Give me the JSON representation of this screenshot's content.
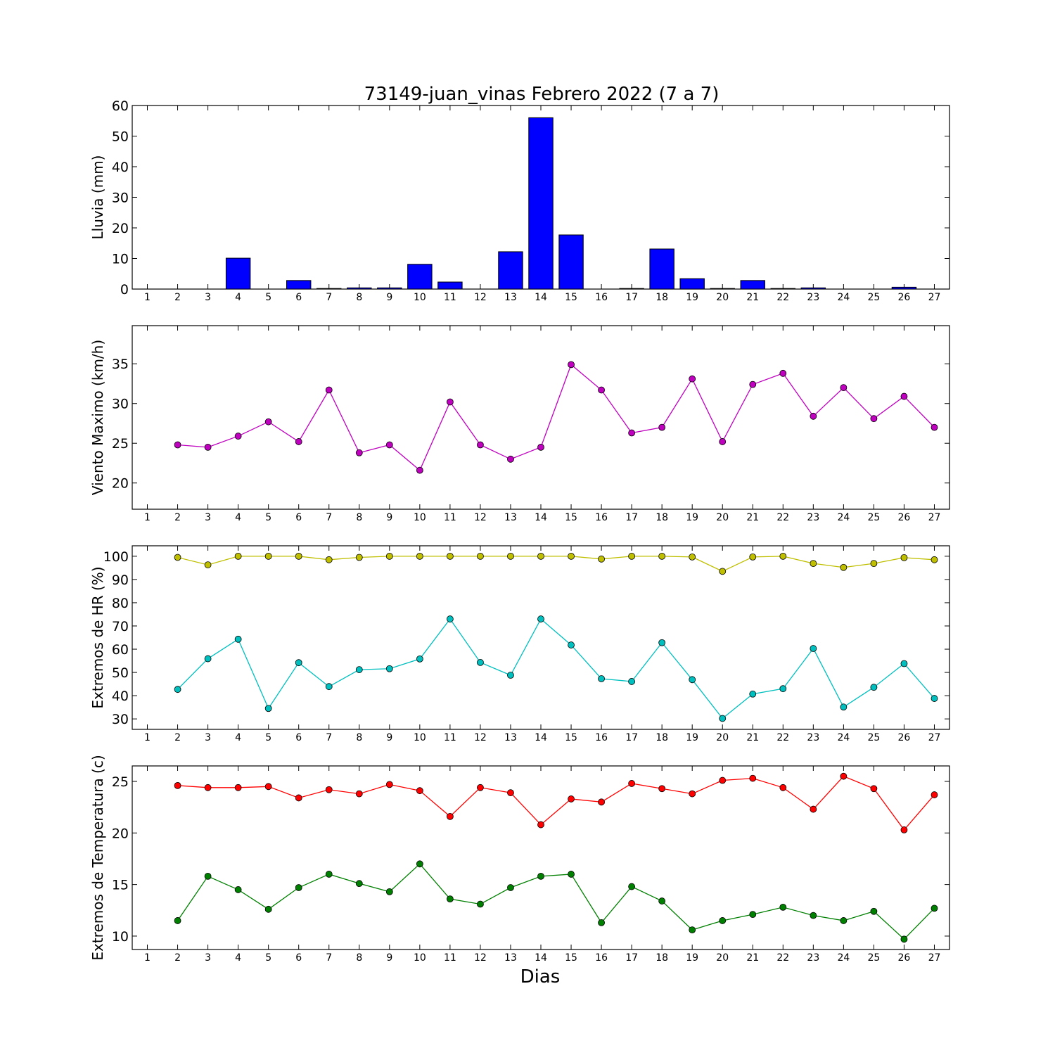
{
  "figure": {
    "title": "73149-juan_vinas Febrero 2022  (7 a 7)",
    "xlabel": "Dias"
  },
  "chart_data": [
    {
      "type": "bar",
      "id": "rain",
      "title": "73149-juan_vinas Febrero 2022  (7 a 7)",
      "xlabel": "",
      "ylabel": "Lluvia (mm)",
      "x": [
        1,
        2,
        3,
        4,
        5,
        6,
        7,
        8,
        9,
        10,
        11,
        12,
        13,
        14,
        15,
        16,
        17,
        18,
        19,
        20,
        21,
        22,
        23,
        24,
        25,
        26,
        27
      ],
      "xlim": [
        0.5,
        27.5
      ],
      "ylim": [
        0,
        60
      ],
      "yticks": [
        0,
        10,
        20,
        30,
        40,
        50,
        60
      ],
      "series": [
        {
          "color": "#0000ff",
          "values": [
            0,
            0,
            0,
            10.1,
            0,
            2.8,
            0.2,
            0.4,
            0.4,
            8.1,
            2.3,
            0,
            12.2,
            56.0,
            17.7,
            0,
            0.2,
            13.1,
            3.4,
            0.2,
            2.8,
            0.2,
            0.4,
            0,
            0,
            0.6,
            0
          ]
        }
      ]
    },
    {
      "type": "line",
      "id": "wind",
      "xlabel": "",
      "ylabel": "Viento Maximo (km/h)",
      "x": [
        1,
        2,
        3,
        4,
        5,
        6,
        7,
        8,
        9,
        10,
        11,
        12,
        13,
        14,
        15,
        16,
        17,
        18,
        19,
        20,
        21,
        22,
        23,
        24,
        25,
        26,
        27
      ],
      "xlim": [
        0.5,
        27.5
      ],
      "ylim": [
        16.7,
        39.8
      ],
      "yticks": [
        20,
        25,
        30,
        35
      ],
      "series": [
        {
          "color": "#bf00bf",
          "x": [
            2,
            3,
            4,
            5,
            6,
            7,
            8,
            9,
            10,
            11,
            12,
            13,
            14,
            15,
            16,
            17,
            18,
            19,
            20,
            21,
            22,
            23,
            24,
            25,
            26,
            27
          ],
          "values": [
            24.8,
            24.5,
            25.9,
            27.7,
            25.2,
            31.7,
            23.8,
            24.8,
            21.6,
            30.2,
            24.8,
            23.0,
            24.5,
            34.9,
            31.7,
            26.3,
            27.0,
            33.1,
            25.2,
            32.4,
            33.8,
            28.4,
            32.0,
            28.1,
            30.9,
            27.0
          ]
        }
      ]
    },
    {
      "type": "line",
      "id": "humidity",
      "xlabel": "",
      "ylabel": "Extremos de HR (%)",
      "x": [
        1,
        2,
        3,
        4,
        5,
        6,
        7,
        8,
        9,
        10,
        11,
        12,
        13,
        14,
        15,
        16,
        17,
        18,
        19,
        20,
        21,
        22,
        23,
        24,
        25,
        26,
        27
      ],
      "xlim": [
        0.5,
        27.5
      ],
      "ylim": [
        25.5,
        104.5
      ],
      "yticks": [
        30,
        40,
        50,
        60,
        70,
        80,
        90,
        100
      ],
      "series": [
        {
          "color": "#bfbf00",
          "x": [
            2,
            3,
            4,
            5,
            6,
            7,
            8,
            9,
            10,
            11,
            12,
            13,
            14,
            15,
            16,
            17,
            18,
            19,
            20,
            21,
            22,
            23,
            24,
            25,
            26,
            27
          ],
          "values": [
            99.5,
            96.3,
            100,
            100,
            100,
            98.5,
            99.5,
            100,
            100,
            100,
            100,
            100,
            100,
            100,
            98.8,
            100,
            100,
            99.7,
            93.5,
            99.7,
            100,
            96.9,
            95.2,
            96.9,
            99.4,
            98.5
          ]
        },
        {
          "color": "#00bfbf",
          "x": [
            2,
            3,
            4,
            5,
            6,
            7,
            8,
            9,
            10,
            11,
            12,
            13,
            14,
            15,
            16,
            17,
            18,
            19,
            20,
            21,
            22,
            23,
            24,
            25,
            26,
            27
          ],
          "values": [
            42.7,
            55.9,
            64.3,
            34.5,
            54.2,
            43.9,
            51.2,
            51.6,
            55.8,
            73.0,
            54.3,
            48.8,
            73.0,
            61.8,
            47.3,
            46.1,
            62.8,
            46.9,
            30.2,
            40.7,
            43.0,
            60.3,
            35.1,
            43.6,
            53.8,
            38.8
          ]
        }
      ]
    },
    {
      "type": "line",
      "id": "temperature",
      "xlabel": "Dias",
      "ylabel": "Extremos de Temperatura (c)",
      "x": [
        1,
        2,
        3,
        4,
        5,
        6,
        7,
        8,
        9,
        10,
        11,
        12,
        13,
        14,
        15,
        16,
        17,
        18,
        19,
        20,
        21,
        22,
        23,
        24,
        25,
        26,
        27
      ],
      "xlim": [
        0.5,
        27.5
      ],
      "ylim": [
        8.7,
        26.5
      ],
      "yticks": [
        10,
        15,
        20,
        25
      ],
      "series": [
        {
          "color": "#ff0000",
          "x": [
            2,
            3,
            4,
            5,
            6,
            7,
            8,
            9,
            10,
            11,
            12,
            13,
            14,
            15,
            16,
            17,
            18,
            19,
            20,
            21,
            22,
            23,
            24,
            25,
            26,
            27
          ],
          "values": [
            24.6,
            24.4,
            24.4,
            24.5,
            23.4,
            24.2,
            23.8,
            24.7,
            24.1,
            21.6,
            24.4,
            23.9,
            20.8,
            23.3,
            23.0,
            24.8,
            24.3,
            23.8,
            25.1,
            25.3,
            24.4,
            22.3,
            25.5,
            24.3,
            20.3,
            23.7
          ]
        },
        {
          "color": "#008000",
          "x": [
            2,
            3,
            4,
            5,
            6,
            7,
            8,
            9,
            10,
            11,
            12,
            13,
            14,
            15,
            16,
            17,
            18,
            19,
            20,
            21,
            22,
            23,
            24,
            25,
            26,
            27
          ],
          "values": [
            11.5,
            15.8,
            14.5,
            12.6,
            14.7,
            16.0,
            15.1,
            14.3,
            17.0,
            13.6,
            13.1,
            14.7,
            15.8,
            16.0,
            11.3,
            14.8,
            13.4,
            10.6,
            11.5,
            12.1,
            12.8,
            12.0,
            11.5,
            12.4,
            9.7,
            12.7
          ]
        }
      ]
    }
  ]
}
